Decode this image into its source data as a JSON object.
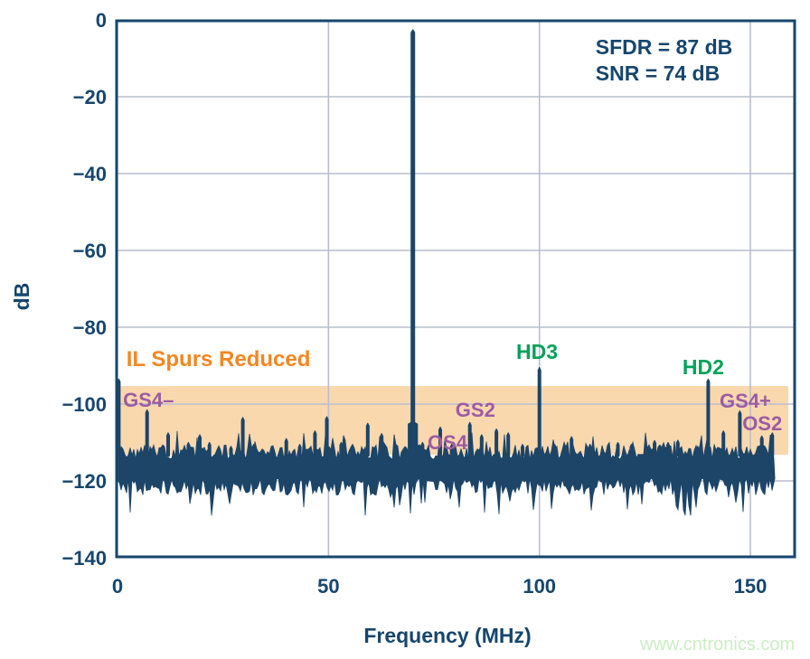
{
  "figure": {
    "watermark": "www.cntronics.com"
  },
  "chart_data": {
    "type": "line",
    "subtype": "fft-spectrum",
    "title": "",
    "xlabel": "Frequency (MHz)",
    "ylabel": "dB",
    "xlim": [
      0,
      160.5
    ],
    "ylim": [
      -140,
      0
    ],
    "xticks": [
      0,
      50,
      100,
      150
    ],
    "yticks": [
      0,
      -20,
      -40,
      -60,
      -80,
      -100,
      -120,
      -140
    ],
    "grid": true,
    "stats_text": [
      "SFDR = 87 dB",
      "SNR = 74 dB"
    ],
    "fundamental": {
      "freq_mhz": 70,
      "level_db": -2.6
    },
    "spurs": [
      {
        "freq_mhz": 0.3,
        "level_db": -93.5
      },
      {
        "freq_mhz": 7.0,
        "level_db": -101.5,
        "name": "GS4–"
      },
      {
        "freq_mhz": 12.0,
        "level_db": -107.5
      },
      {
        "freq_mhz": 16.8,
        "level_db": -110.0
      },
      {
        "freq_mhz": 19.5,
        "level_db": -108.0
      },
      {
        "freq_mhz": 21.8,
        "level_db": -110.0
      },
      {
        "freq_mhz": 26.9,
        "level_db": -111.0
      },
      {
        "freq_mhz": 29.7,
        "level_db": -103.5
      },
      {
        "freq_mhz": 32.3,
        "level_db": -110.5
      },
      {
        "freq_mhz": 40.0,
        "level_db": -109.0
      },
      {
        "freq_mhz": 43.2,
        "level_db": -110.5
      },
      {
        "freq_mhz": 46.8,
        "level_db": -107.0
      },
      {
        "freq_mhz": 49.6,
        "level_db": -103.3
      },
      {
        "freq_mhz": 53.0,
        "level_db": -110.0
      },
      {
        "freq_mhz": 59.3,
        "level_db": -105.0
      },
      {
        "freq_mhz": 62.6,
        "level_db": -107.7
      },
      {
        "freq_mhz": 66.0,
        "level_db": -110.5
      },
      {
        "freq_mhz": 72.3,
        "level_db": -110.0
      },
      {
        "freq_mhz": 76.5,
        "level_db": -106.0,
        "name": "OS4"
      },
      {
        "freq_mhz": 79.2,
        "level_db": -110.5
      },
      {
        "freq_mhz": 83.5,
        "level_db": -104.8,
        "name": "GS2"
      },
      {
        "freq_mhz": 86.3,
        "level_db": -108.0
      },
      {
        "freq_mhz": 89.8,
        "level_db": -106.5
      },
      {
        "freq_mhz": 92.6,
        "level_db": -107.5
      },
      {
        "freq_mhz": 96.0,
        "level_db": -110.5
      },
      {
        "freq_mhz": 100.0,
        "level_db": -90.5,
        "name": "HD3"
      },
      {
        "freq_mhz": 103.6,
        "level_db": -110.5
      },
      {
        "freq_mhz": 107.6,
        "level_db": -108.5
      },
      {
        "freq_mhz": 112.0,
        "level_db": -110.5
      },
      {
        "freq_mhz": 118.6,
        "level_db": -110.0
      },
      {
        "freq_mhz": 121.8,
        "level_db": -110.5
      },
      {
        "freq_mhz": 127.3,
        "level_db": -109.5
      },
      {
        "freq_mhz": 130.5,
        "level_db": -110.0
      },
      {
        "freq_mhz": 132.8,
        "level_db": -109.4
      },
      {
        "freq_mhz": 137.5,
        "level_db": -111.0
      },
      {
        "freq_mhz": 140.0,
        "level_db": -93.5,
        "name": "HD2"
      },
      {
        "freq_mhz": 143.6,
        "level_db": -107.0
      },
      {
        "freq_mhz": 147.5,
        "level_db": -101.8,
        "name": "GS4+"
      },
      {
        "freq_mhz": 152.7,
        "level_db": -108.3,
        "name": "OS2"
      },
      {
        "freq_mhz": 155.2,
        "level_db": -107.5
      }
    ],
    "noise_floor": {
      "start_mhz": 0,
      "end_mhz": 155.8,
      "top_mean_db": -112.5,
      "bottom_mean_db": -121.5,
      "min_db": -129,
      "seed": 9
    },
    "highlight_band": {
      "label": "IL Spurs Reduced",
      "x_range_mhz": [
        0.3,
        159
      ],
      "y_range_db": [
        -95.3,
        -113.2
      ]
    },
    "annotations": [
      {
        "text": "IL Spurs Reduced",
        "kind": "band-label",
        "x_mhz": 2.1,
        "y_db": -90.1
      },
      {
        "text": "GS4–",
        "kind": "interleave-spur-label",
        "x_mhz": 1.3,
        "y_db": -100.7
      },
      {
        "text": "OS4",
        "kind": "interleave-spur-label",
        "x_mhz": 73.5,
        "y_db": -111.8
      },
      {
        "text": "GS2",
        "kind": "interleave-spur-label",
        "x_mhz": 80.1,
        "y_db": -103.3
      },
      {
        "text": "HD3",
        "kind": "harmonic-label",
        "x_mhz": 94.5,
        "y_db": -88.2
      },
      {
        "text": "HD2",
        "kind": "harmonic-label",
        "x_mhz": 133.9,
        "y_db": -92.2
      },
      {
        "text": "GS4+",
        "kind": "interleave-spur-label",
        "x_mhz": 142.7,
        "y_db": -100.9
      },
      {
        "text": "OS2",
        "kind": "interleave-spur-label",
        "x_mhz": 148.1,
        "y_db": -106.8
      },
      {
        "text": "SFDR = 87 dB",
        "kind": "stat",
        "x_mhz": 113.3,
        "y_db": -8.9
      },
      {
        "text": "SNR = 74 dB",
        "kind": "stat",
        "x_mhz": 113.3,
        "y_db": -15.8
      }
    ],
    "colors": {
      "navy": "#16466E",
      "spectrum": "#1D4568",
      "grid": "#B9BECE",
      "band": "#FAD8AE",
      "orange": "#F6861F",
      "purple": "#9C5BA4",
      "green": "#00A259",
      "watermark": "#CBEDC5",
      "background": "#FFFFFF"
    }
  }
}
